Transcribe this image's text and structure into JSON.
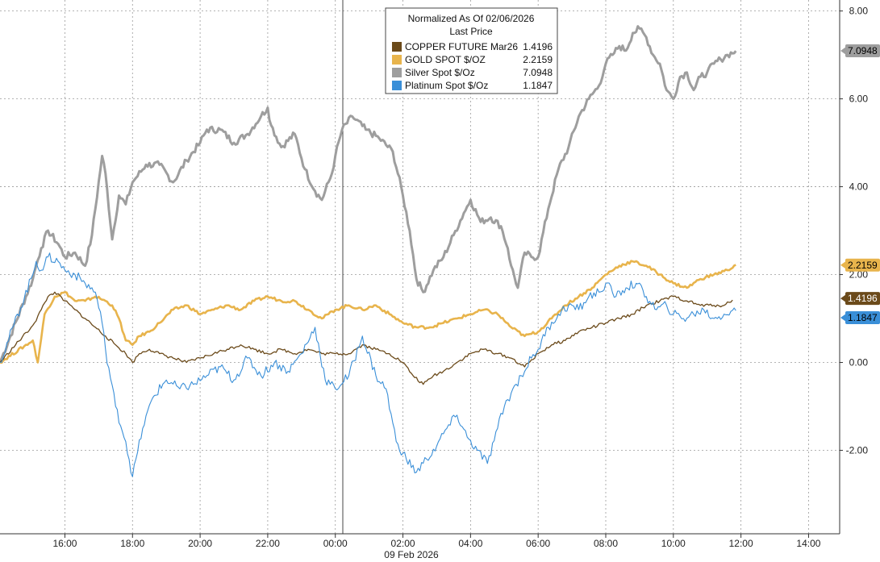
{
  "chart_data": {
    "type": "line",
    "title": "Normalized As Of 02/06/2026",
    "subtitle": "Last Price",
    "date_label": "09 Feb 2026",
    "xlabel": "",
    "ylabel": "",
    "x_unit": "hours since 16:00",
    "xlim": [
      -1.92,
      22.92
    ],
    "ylim": [
      -3.9,
      8.25
    ],
    "grid": true,
    "legend_position": "top-center",
    "x_ticks": [
      {
        "value": 0,
        "label": "16:00"
      },
      {
        "value": 2,
        "label": "18:00"
      },
      {
        "value": 4,
        "label": "20:00"
      },
      {
        "value": 6,
        "label": "22:00"
      },
      {
        "value": 8,
        "label": "00:00"
      },
      {
        "value": 10,
        "label": "02:00"
      },
      {
        "value": 12,
        "label": "04:00"
      },
      {
        "value": 14,
        "label": "06:00"
      },
      {
        "value": 16,
        "label": "08:00"
      },
      {
        "value": 18,
        "label": "10:00"
      },
      {
        "value": 20,
        "label": "12:00"
      },
      {
        "value": 22,
        "label": "14:00"
      }
    ],
    "y_ticks": [
      {
        "value": 8,
        "label": "8.00"
      },
      {
        "value": 6,
        "label": "6.00"
      },
      {
        "value": 4,
        "label": "4.00"
      },
      {
        "value": 2,
        "label": "2.00"
      },
      {
        "value": 0,
        "label": "0.00"
      },
      {
        "value": -2,
        "label": "-2.00"
      }
    ],
    "series": [
      {
        "name": "Silver Spot $/Oz",
        "last": "7.0948",
        "color": "#9e9e9e",
        "label_text_color": "#000000",
        "x": [
          -1.92,
          -0.95,
          -0.85,
          -0.7,
          -0.5,
          -0.2,
          0.0,
          0.3,
          0.6,
          0.8,
          1.1,
          1.2,
          1.4,
          1.6,
          1.8,
          2.0,
          2.1,
          2.4,
          2.8,
          3.2,
          3.6,
          4.0,
          4.2,
          4.6,
          5.0,
          5.4,
          5.8,
          6.0,
          6.1,
          6.4,
          6.8,
          7.1,
          7.4,
          7.6,
          7.9,
          8.0,
          8.2,
          8.5,
          8.9,
          9.3,
          9.7,
          10.0,
          10.2,
          10.4,
          10.6,
          10.9,
          11.2,
          11.5,
          11.8,
          12.0,
          12.3,
          12.6,
          12.9,
          13.1,
          13.2,
          13.4,
          13.6,
          13.8,
          14.0,
          14.3,
          14.6,
          14.9,
          15.2,
          15.5,
          15.8,
          16.0,
          16.2,
          16.4,
          16.6,
          16.8,
          17.0,
          17.2,
          17.4,
          17.6,
          17.8,
          18.0,
          18.2,
          18.4,
          18.6,
          18.8,
          19.0,
          19.2,
          19.4,
          19.6,
          19.85
        ],
        "values": [
          0.0,
          1.9,
          2.2,
          2.6,
          3.0,
          2.7,
          2.4,
          2.5,
          2.2,
          2.9,
          4.7,
          4.3,
          2.8,
          3.8,
          3.6,
          4.1,
          4.2,
          4.5,
          4.5,
          4.1,
          4.6,
          5.0,
          5.3,
          5.3,
          5.0,
          5.2,
          5.6,
          5.8,
          5.4,
          4.9,
          5.2,
          4.4,
          3.9,
          3.7,
          4.3,
          4.7,
          5.3,
          5.6,
          5.3,
          5.1,
          4.8,
          3.8,
          3.0,
          1.9,
          1.6,
          2.1,
          2.4,
          2.9,
          3.4,
          3.7,
          3.2,
          3.3,
          3.1,
          2.6,
          2.2,
          1.7,
          2.5,
          2.4,
          2.4,
          3.5,
          4.4,
          4.9,
          5.6,
          6.0,
          6.3,
          6.8,
          7.0,
          7.2,
          7.1,
          7.5,
          7.6,
          7.4,
          7.0,
          6.8,
          6.2,
          6.0,
          6.5,
          6.6,
          6.2,
          6.5,
          6.6,
          6.8,
          6.9,
          7.0,
          7.09
        ]
      },
      {
        "name": "GOLD SPOT $/OZ",
        "last": "2.2159",
        "color": "#e8b44c",
        "label_text_color": "#000000",
        "x": [
          -1.92,
          -0.95,
          -0.8,
          -0.6,
          -0.3,
          0.0,
          0.3,
          0.6,
          0.9,
          1.2,
          1.4,
          1.6,
          1.8,
          2.0,
          2.2,
          2.5,
          2.8,
          3.2,
          3.6,
          4.0,
          4.4,
          4.8,
          5.2,
          5.6,
          6.0,
          6.4,
          6.8,
          7.2,
          7.6,
          8.0,
          8.4,
          8.8,
          9.2,
          9.6,
          10.0,
          10.4,
          10.8,
          11.2,
          11.6,
          12.0,
          12.4,
          12.8,
          13.2,
          13.6,
          14.0,
          14.4,
          14.8,
          15.2,
          15.6,
          16.0,
          16.4,
          16.8,
          17.2,
          17.6,
          18.0,
          18.4,
          18.8,
          19.2,
          19.6,
          19.85
        ],
        "values": [
          0.0,
          0.5,
          0.0,
          1.1,
          1.5,
          1.6,
          1.4,
          1.4,
          1.5,
          1.4,
          1.3,
          1.0,
          0.5,
          0.4,
          0.6,
          0.7,
          0.9,
          1.2,
          1.3,
          1.1,
          1.2,
          1.3,
          1.2,
          1.4,
          1.5,
          1.4,
          1.4,
          1.2,
          1.0,
          1.2,
          1.3,
          1.2,
          1.3,
          1.1,
          0.9,
          0.8,
          0.8,
          0.9,
          1.0,
          1.1,
          1.2,
          1.1,
          0.8,
          0.6,
          0.7,
          1.0,
          1.3,
          1.5,
          1.7,
          2.0,
          2.2,
          2.3,
          2.2,
          2.0,
          1.8,
          1.7,
          1.9,
          2.0,
          2.1,
          2.22
        ]
      },
      {
        "name": "COPPER FUTURE Mar26",
        "last": "1.4196",
        "color": "#6b4a1a",
        "label_text_color": "#ffffff",
        "x": [
          -1.92,
          -1.0,
          -0.9,
          -0.7,
          -0.5,
          -0.3,
          0.0,
          0.3,
          0.6,
          0.9,
          1.2,
          1.5,
          1.8,
          2.0,
          2.2,
          2.5,
          2.8,
          3.2,
          3.6,
          4.0,
          4.4,
          4.8,
          5.2,
          5.6,
          6.0,
          6.4,
          6.8,
          7.2,
          7.6,
          8.0,
          8.4,
          8.8,
          9.2,
          9.6,
          10.0,
          10.3,
          10.6,
          10.9,
          11.2,
          11.6,
          12.0,
          12.4,
          12.8,
          13.2,
          13.6,
          14.0,
          14.4,
          14.8,
          15.2,
          15.6,
          16.0,
          16.4,
          16.8,
          17.2,
          17.6,
          18.0,
          18.4,
          18.8,
          19.2,
          19.5,
          19.75
        ],
        "values": [
          0.0,
          0.8,
          0.9,
          1.2,
          1.5,
          1.6,
          1.4,
          1.2,
          1.0,
          0.8,
          0.6,
          0.4,
          0.2,
          0.0,
          0.2,
          0.3,
          0.2,
          0.1,
          0.0,
          0.1,
          0.2,
          0.3,
          0.4,
          0.3,
          0.2,
          0.3,
          0.2,
          0.3,
          0.2,
          0.2,
          0.2,
          0.4,
          0.3,
          0.2,
          0.0,
          -0.3,
          -0.5,
          -0.3,
          -0.2,
          0.0,
          0.2,
          0.3,
          0.2,
          0.1,
          -0.1,
          0.2,
          0.4,
          0.5,
          0.7,
          0.8,
          0.9,
          1.0,
          1.1,
          1.3,
          1.4,
          1.5,
          1.4,
          1.3,
          1.3,
          1.3,
          1.42
        ]
      },
      {
        "name": "Platinum Spot $/Oz",
        "last": "1.1847",
        "color": "#3a8fd8",
        "label_text_color": "#000000",
        "x": [
          -1.92,
          -0.95,
          -0.85,
          -0.7,
          -0.5,
          -0.2,
          0.0,
          0.3,
          0.6,
          0.9,
          1.1,
          1.2,
          1.5,
          1.8,
          2.0,
          2.3,
          2.6,
          3.0,
          3.4,
          3.8,
          4.2,
          4.6,
          5.0,
          5.4,
          5.8,
          6.2,
          6.6,
          7.0,
          7.4,
          7.7,
          8.0,
          8.4,
          8.8,
          9.2,
          9.5,
          9.8,
          10.1,
          10.4,
          10.7,
          11.0,
          11.3,
          11.6,
          11.9,
          12.2,
          12.5,
          12.8,
          13.0,
          13.2,
          13.5,
          13.8,
          14.0,
          14.3,
          14.6,
          14.9,
          15.2,
          15.5,
          15.8,
          16.0,
          16.3,
          16.6,
          16.9,
          17.2,
          17.5,
          17.8,
          18.0,
          18.3,
          18.6,
          18.9,
          19.2,
          19.5,
          19.85
        ],
        "values": [
          0.0,
          2.0,
          2.3,
          2.1,
          2.4,
          2.3,
          2.1,
          2.0,
          1.8,
          1.6,
          0.9,
          0.3,
          -1.0,
          -1.8,
          -2.6,
          -1.5,
          -0.8,
          -0.4,
          -0.6,
          -0.5,
          -0.3,
          -0.1,
          -0.4,
          0.1,
          -0.3,
          0.0,
          -0.2,
          0.2,
          0.8,
          -0.4,
          -0.6,
          -0.3,
          0.6,
          -0.3,
          -0.6,
          -1.8,
          -2.2,
          -2.5,
          -2.2,
          -1.9,
          -1.5,
          -1.2,
          -1.7,
          -2.0,
          -2.3,
          -1.5,
          -1.0,
          -0.7,
          -0.3,
          0.1,
          0.3,
          0.8,
          1.1,
          1.3,
          1.2,
          1.5,
          1.6,
          1.8,
          1.5,
          1.7,
          1.8,
          1.5,
          1.2,
          1.3,
          1.1,
          1.0,
          1.1,
          1.2,
          1.0,
          1.1,
          1.18
        ]
      }
    ]
  },
  "legend_order": [
    2,
    1,
    0,
    3
  ]
}
